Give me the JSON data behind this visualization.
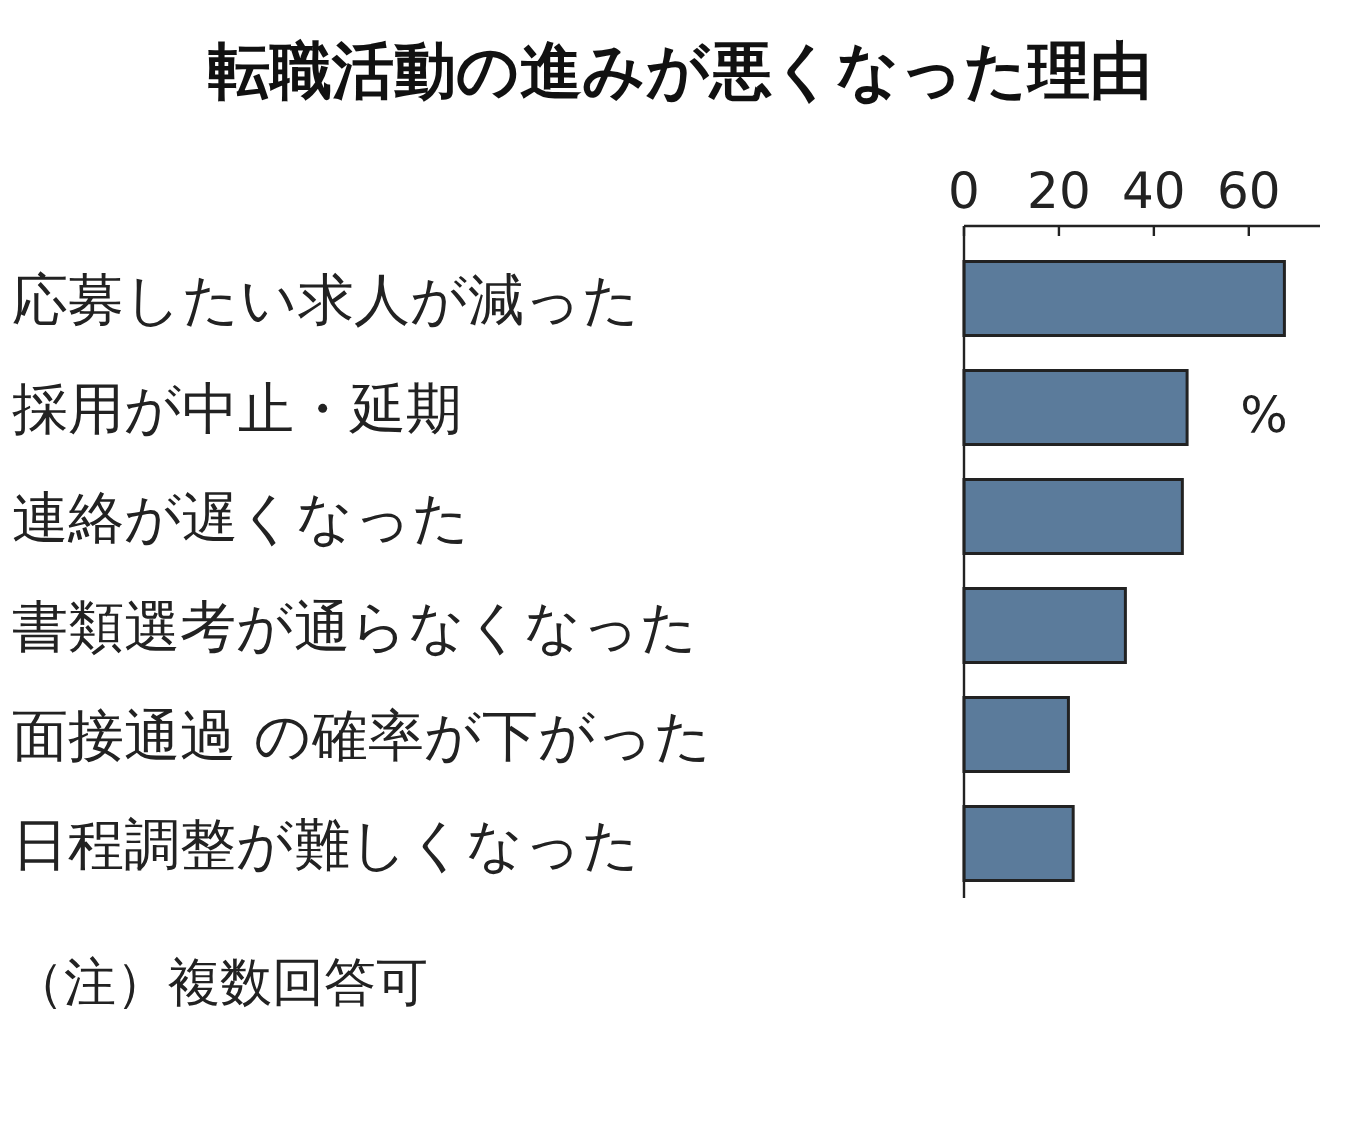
{
  "chart_data": {
    "type": "bar",
    "orientation": "horizontal",
    "title": "転職活動の進みが悪くなった理由",
    "categories": [
      "応募したい求人が減った",
      "採用が中止・延期",
      "連絡が遅くなった",
      "書類選考が通らなくなった",
      "面接通過 の確率が下がった",
      "日程調整が難しくなった"
    ],
    "values": [
      67.5,
      47,
      46,
      34,
      22,
      23
    ],
    "color": "#5b7b9b",
    "xlim": [
      0,
      75
    ],
    "xticks": [
      0,
      20,
      40,
      60
    ],
    "xlabel": "%",
    "annotations": [
      "（注）複数回答可"
    ]
  }
}
